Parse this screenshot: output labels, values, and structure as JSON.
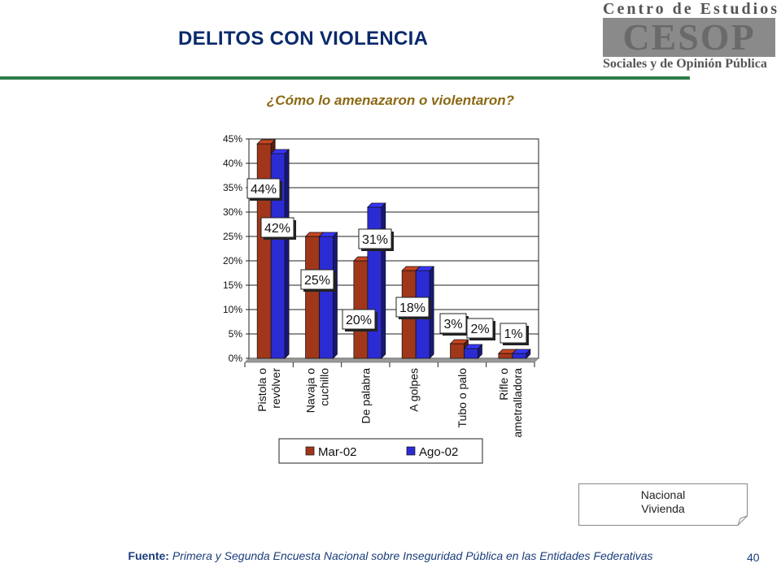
{
  "header": {
    "title": "DELITOS CON VIOLENCIA",
    "logo_top": "Centro de Estudios",
    "logo_mark": "CESOP",
    "logo_bottom": "Sociales y de Opinión Pública"
  },
  "chart_data": {
    "type": "bar",
    "title": "¿Cómo lo amenazaron o violentaron?",
    "categories": [
      [
        "Pistola o",
        "revólver"
      ],
      [
        "Navaja o",
        "cuchillo"
      ],
      [
        "De palabra"
      ],
      [
        "A golpes"
      ],
      [
        "Tubo o palo"
      ],
      [
        "Rifle o",
        "ametralladora"
      ]
    ],
    "series": [
      {
        "name": "Mar-02",
        "values": [
          44,
          25,
          20,
          18,
          3,
          1
        ],
        "labels": [
          "44%",
          "",
          "20%",
          "",
          "3%",
          ""
        ],
        "color": "#a0371a"
      },
      {
        "name": "Ago-02",
        "values": [
          42,
          25,
          31,
          18,
          2,
          1
        ],
        "labels": [
          "42%",
          "25%",
          "31%",
          "18%",
          "2%",
          "1%"
        ],
        "color": "#2b2bd4"
      }
    ],
    "y_ticks": [
      "0%",
      "5%",
      "10%",
      "15%",
      "20%",
      "25%",
      "30%",
      "35%",
      "40%",
      "45%"
    ],
    "ylim": [
      0,
      45
    ],
    "grid": true,
    "legend_position": "bottom"
  },
  "note": {
    "line1": "Nacional",
    "line2": "Vivienda"
  },
  "footer": {
    "source_label": "Fuente:",
    "source_text": "Primera y Segunda Encuesta Nacional sobre Inseguridad Pública en las Entidades Federativas",
    "page_number": "40"
  }
}
